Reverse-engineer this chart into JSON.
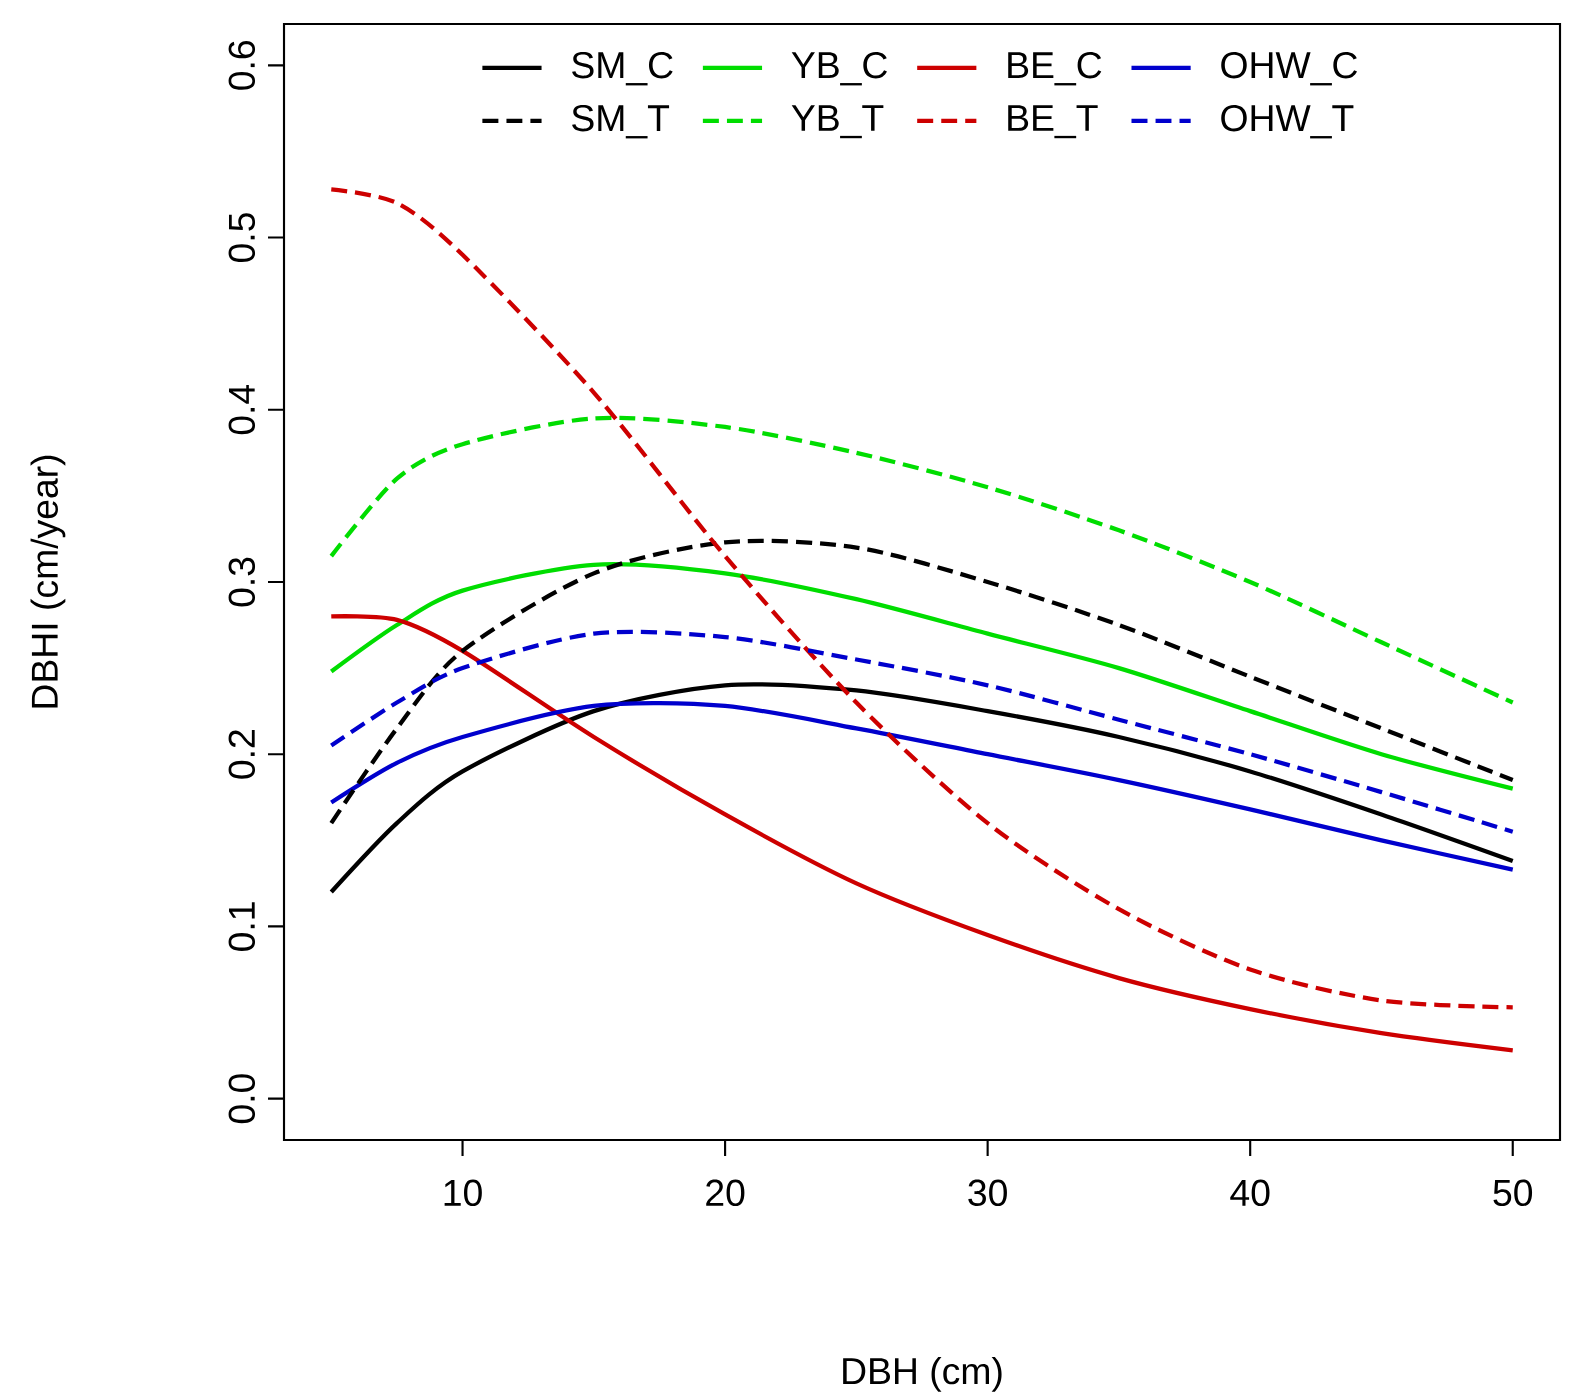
{
  "chart_data": {
    "type": "line",
    "xlabel": "DBH (cm)",
    "ylabel": "DBHI (cm/year)",
    "x": [
      5,
      7.5,
      10,
      15,
      20,
      25,
      30,
      35,
      40,
      45,
      50
    ],
    "series": [
      {
        "name": "SM_C",
        "color": "#000000",
        "line_style": "solid",
        "values": [
          0.12,
          0.16,
          0.19,
          0.225,
          0.24,
          0.237,
          0.225,
          0.21,
          0.19,
          0.165,
          0.138
        ]
      },
      {
        "name": "YB_C",
        "color": "#00dd00",
        "line_style": "solid",
        "values": [
          0.248,
          0.275,
          0.295,
          0.31,
          0.305,
          0.29,
          0.27,
          0.25,
          0.225,
          0.2,
          0.18
        ]
      },
      {
        "name": "BE_C",
        "color": "#cd0000",
        "line_style": "solid",
        "values": [
          0.28,
          0.278,
          0.26,
          0.21,
          0.165,
          0.125,
          0.095,
          0.07,
          0.052,
          0.038,
          0.028
        ]
      },
      {
        "name": "OHW_C",
        "color": "#0000cd",
        "line_style": "solid",
        "values": [
          0.172,
          0.195,
          0.21,
          0.228,
          0.228,
          0.215,
          0.2,
          0.185,
          0.168,
          0.15,
          0.133
        ]
      },
      {
        "name": "SM_T",
        "color": "#000000",
        "line_style": "dashed",
        "values": [
          0.16,
          0.215,
          0.26,
          0.305,
          0.323,
          0.32,
          0.3,
          0.275,
          0.245,
          0.215,
          0.185
        ]
      },
      {
        "name": "YB_T",
        "color": "#00dd00",
        "line_style": "dashed",
        "values": [
          0.315,
          0.36,
          0.38,
          0.395,
          0.39,
          0.375,
          0.355,
          0.33,
          0.3,
          0.265,
          0.23
        ]
      },
      {
        "name": "BE_T",
        "color": "#cd0000",
        "line_style": "dashed",
        "values": [
          0.528,
          0.52,
          0.49,
          0.41,
          0.315,
          0.23,
          0.16,
          0.11,
          0.075,
          0.057,
          0.053
        ]
      },
      {
        "name": "OHW_T",
        "color": "#0000cd",
        "line_style": "dashed",
        "values": [
          0.205,
          0.23,
          0.25,
          0.27,
          0.268,
          0.255,
          0.24,
          0.22,
          0.2,
          0.178,
          0.155
        ]
      }
    ],
    "xlim": [
      3.2,
      51.8
    ],
    "ylim": [
      -0.024,
      0.624
    ],
    "xticks": [
      10,
      20,
      30,
      40,
      50
    ],
    "yticks": [
      {
        "value": 0,
        "label": "0.0"
      },
      0.1,
      0.2,
      0.3,
      0.4,
      0.5,
      0.6
    ],
    "legend": "top",
    "grid": false,
    "marker": "none"
  }
}
